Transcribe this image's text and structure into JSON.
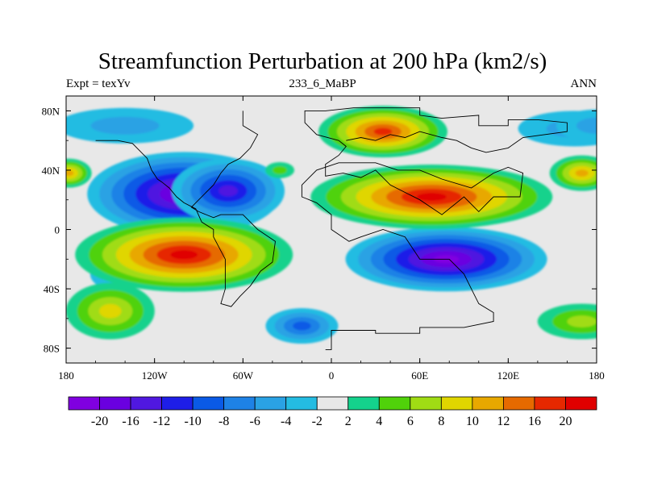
{
  "title": "Streamfunction Perturbation at 200 hPa (km2/s)",
  "subtitle_left": "Expt = texYv",
  "subtitle_center": "233_6_MaBP",
  "subtitle_right": "ANN",
  "chart_data": {
    "type": "heatmap",
    "projection": "cylindrical equidistant",
    "x_ticks": [
      "180",
      "120W",
      "60W",
      "0",
      "60E",
      "120E",
      "180"
    ],
    "x_tick_values": [
      -180,
      -120,
      -60,
      0,
      60,
      120,
      180
    ],
    "y_ticks": [
      "80N",
      "40N",
      "0",
      "40S",
      "80S"
    ],
    "y_tick_values": [
      80,
      40,
      0,
      -40,
      -80
    ],
    "xlim": [
      -180,
      180
    ],
    "ylim": [
      -90,
      90
    ],
    "colorbar": {
      "labels": [
        "-20",
        "-16",
        "-12",
        "-10",
        "-8",
        "-6",
        "-4",
        "-2",
        "2",
        "4",
        "6",
        "8",
        "10",
        "12",
        "16",
        "20"
      ],
      "colors": [
        "#8000e0",
        "#6a00e0",
        "#5018e0",
        "#1e1ee8",
        "#0a5ae6",
        "#1e82e6",
        "#2aa2e4",
        "#24bce2",
        "#e8e8e8",
        "#14d28c",
        "#50d20a",
        "#a0dc14",
        "#e0d600",
        "#e8a800",
        "#e66a00",
        "#e62800",
        "#e00000"
      ]
    },
    "features": [
      {
        "name": "negative center N Pacific-America",
        "lon": -96,
        "lat": 24,
        "peak": -22
      },
      {
        "name": "negative center S Indian Ocean",
        "lon": 80,
        "lat": -20,
        "peak": -22
      },
      {
        "name": "positive center S Pacific",
        "lon": -100,
        "lat": -17,
        "peak": 22
      },
      {
        "name": "positive center Asia",
        "lon": 70,
        "lat": 22,
        "peak": 20
      },
      {
        "name": "positive center N Eurasia",
        "lon": 36,
        "lat": 67,
        "peak": 14
      },
      {
        "name": "negative center S Atlantic",
        "lon": -20,
        "lat": -65,
        "peak": -12
      },
      {
        "name": "positive band S Pacific",
        "lon": -150,
        "lat": -55,
        "peak": 8
      }
    ]
  }
}
